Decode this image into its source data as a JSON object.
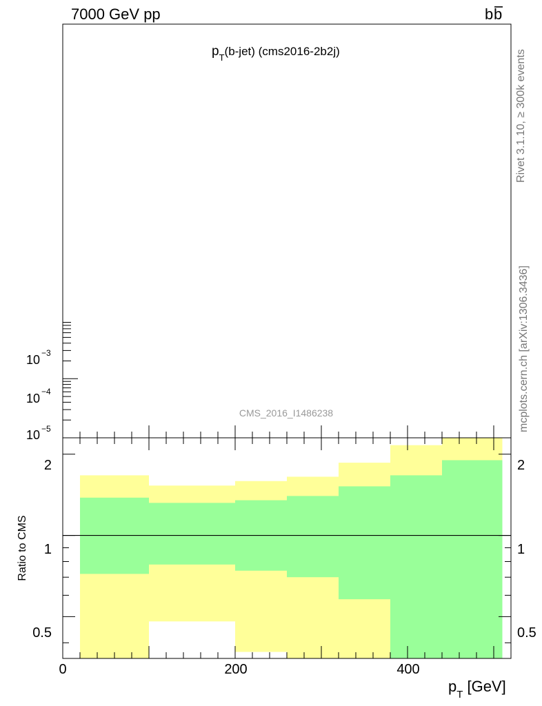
{
  "header": {
    "energy_label": "7000 GeV pp",
    "process_label_base": "b",
    "process_label_bar": "b"
  },
  "side_labels": {
    "rivet": "Rivet 3.1.10, ≥ 300k events",
    "source": "mcplots.cern.ch [arXiv:1306.3436]"
  },
  "main_panel": {
    "title_p": "p",
    "title_sub": "T",
    "title_rest": "(b-jet) (cms2016-2b2j)",
    "watermark": "CMS_2016_I1486238",
    "y_tick_labels": [
      {
        "base": "10",
        "exp": "−3",
        "value": 0.001
      },
      {
        "base": "10",
        "exp": "−4",
        "value": 0.0001
      },
      {
        "base": "10",
        "exp": "−5",
        "value": 1e-05
      }
    ]
  },
  "ratio_panel": {
    "ylabel": "Ratio to CMS",
    "y_tick_labels": [
      "2",
      "1",
      "0.5"
    ]
  },
  "x_axis": {
    "tick_labels": [
      "0",
      "200",
      "400"
    ],
    "label_p": "p",
    "label_sub": "T",
    "label_rest": " [GeV]"
  },
  "chart_data": {
    "type": "area",
    "x_range": [
      0,
      520
    ],
    "ratio_ylim": [
      0.35,
      2.3
    ],
    "ratio_yscale": "log",
    "main_yscale": "log",
    "main_ylim": [
      1e-05,
      100
    ],
    "reference_line": 1,
    "bins": [
      {
        "low": 20,
        "high": 100,
        "inner_lo": 0.72,
        "inner_hi": 1.38,
        "outer_lo": 0.35,
        "outer_hi": 1.67
      },
      {
        "low": 100,
        "high": 200,
        "inner_lo": 0.78,
        "inner_hi": 1.32,
        "outer_lo": 0.48,
        "outer_hi": 1.53
      },
      {
        "low": 200,
        "high": 260,
        "inner_lo": 0.74,
        "inner_hi": 1.35,
        "outer_lo": 0.37,
        "outer_hi": 1.59
      },
      {
        "low": 260,
        "high": 320,
        "inner_lo": 0.7,
        "inner_hi": 1.4,
        "outer_lo": 0.35,
        "outer_hi": 1.65
      },
      {
        "low": 320,
        "high": 380,
        "inner_lo": 0.58,
        "inner_hi": 1.52,
        "outer_lo": 0.35,
        "outer_hi": 1.86
      },
      {
        "low": 380,
        "high": 440,
        "inner_lo": 0.35,
        "inner_hi": 1.67,
        "outer_lo": 0.35,
        "outer_hi": 2.16
      },
      {
        "low": 440,
        "high": 510,
        "inner_lo": 0.35,
        "inner_hi": 1.9,
        "outer_lo": 0.35,
        "outer_hi": 2.3
      }
    ],
    "colors": {
      "inner_band": "#99ff99",
      "outer_band": "#ffff99",
      "axis": "#000000",
      "watermark": "#999999",
      "side_text": "#777777"
    }
  }
}
